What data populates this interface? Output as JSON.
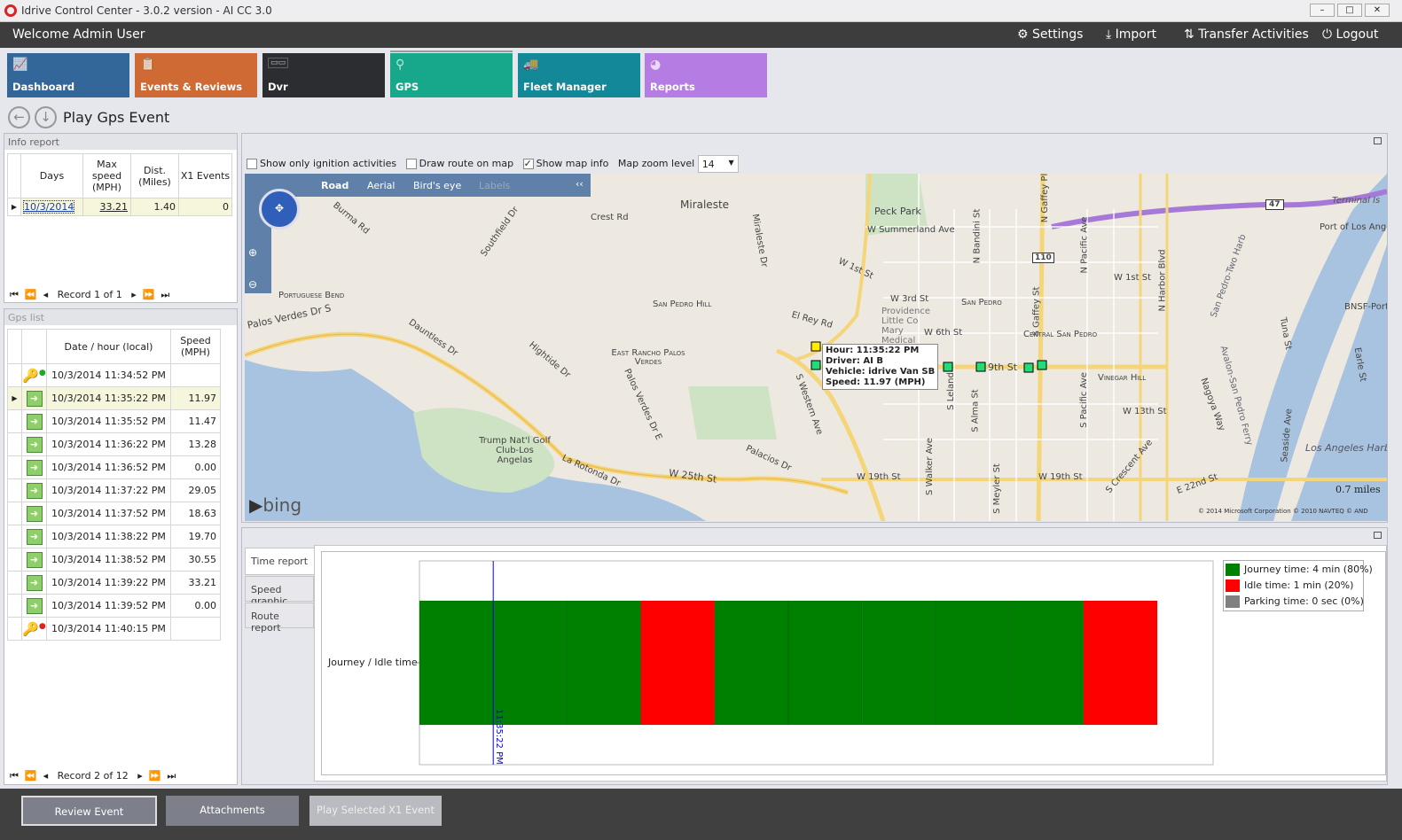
{
  "window": {
    "title": "Idrive Control Center - 3.0.2 version - AI CC 3.0",
    "controls": [
      "–",
      "□",
      "✕"
    ]
  },
  "header": {
    "welcome": "Welcome Admin User",
    "settings": "Settings",
    "import": "Import",
    "transfer": "Transfer Activities",
    "logout": "Logout"
  },
  "tiles": [
    {
      "label": "Dashboard",
      "color": "#336699",
      "icon": "chart-icon"
    },
    {
      "label": "Events & Reviews",
      "color": "#cf6a34",
      "icon": "clipboard-icon"
    },
    {
      "label": "Dvr",
      "color": "#2b2d31",
      "icon": "dvr-icon"
    },
    {
      "label": "GPS",
      "color": "#17a88b",
      "icon": "pin-icon"
    },
    {
      "label": "Fleet Manager",
      "color": "#138899",
      "icon": "trucks-icon"
    },
    {
      "label": "Reports",
      "color": "#b57de3",
      "icon": "pie-icon"
    }
  ],
  "page": {
    "title": "Play Gps Event"
  },
  "info_report": {
    "title": "Info report",
    "columns": [
      "Days",
      "Max speed (MPH)",
      "Dist. (Miles)",
      "X1 Events"
    ],
    "rows": [
      {
        "day": "10/3/2014",
        "max_speed": "33.21",
        "dist": "1.40",
        "x1": "0"
      }
    ],
    "record": "Record 1 of 1"
  },
  "gps_list": {
    "title": "Gps list",
    "columns": [
      "Date / hour (local)",
      "Speed (MPH)"
    ],
    "rows": [
      {
        "time": "10/3/2014 11:34:52 PM",
        "speed": "",
        "type": "ignition-on"
      },
      {
        "time": "10/3/2014 11:35:22 PM",
        "speed": "11.97",
        "type": "gps",
        "selected": true
      },
      {
        "time": "10/3/2014 11:35:52 PM",
        "speed": "11.47",
        "type": "gps"
      },
      {
        "time": "10/3/2014 11:36:22 PM",
        "speed": "13.28",
        "type": "gps"
      },
      {
        "time": "10/3/2014 11:36:52 PM",
        "speed": "0.00",
        "type": "gps"
      },
      {
        "time": "10/3/2014 11:37:22 PM",
        "speed": "29.05",
        "type": "gps"
      },
      {
        "time": "10/3/2014 11:37:52 PM",
        "speed": "18.63",
        "type": "gps"
      },
      {
        "time": "10/3/2014 11:38:22 PM",
        "speed": "19.70",
        "type": "gps"
      },
      {
        "time": "10/3/2014 11:38:52 PM",
        "speed": "30.55",
        "type": "gps"
      },
      {
        "time": "10/3/2014 11:39:22 PM",
        "speed": "33.21",
        "type": "gps"
      },
      {
        "time": "10/3/2014 11:39:52 PM",
        "speed": "0.00",
        "type": "gps"
      },
      {
        "time": "10/3/2014 11:40:15 PM",
        "speed": "",
        "type": "ignition-off"
      }
    ],
    "record": "Record 2 of 12"
  },
  "map_options": {
    "ignition_only": "Show only ignition activities",
    "ignition_only_checked": false,
    "draw_route": "Draw route on map",
    "draw_route_checked": false,
    "show_info": "Show map info",
    "show_info_checked": true,
    "zoom_label": "Map zoom level",
    "zoom_value": "14"
  },
  "map": {
    "modes": [
      "Road",
      "Aerial",
      "Bird's eye",
      "Labels"
    ],
    "active_mode": "Road",
    "collapse": "‹‹",
    "brand": "bing",
    "scale": "0.7 miles",
    "copyright": "© 2014 Microsoft Corporation   © 2010 NAVTEQ   © AND",
    "tooltip": {
      "hour": "Hour: 11:35:22 PM",
      "driver": "Driver: AI B",
      "vehicle": "Vehicle: idrive Van SB",
      "speed": "Speed: 11.97 (MPH)"
    },
    "labels": [
      "Miraleste",
      "Peck Park",
      "W Summerland Ave",
      "Crest Rd",
      "Portuguese Bend",
      "Palos Verdes Dr S",
      "San Pedro Hill",
      "East Rancho Palos Verdes",
      "W 1st St",
      "W 3rd St",
      "Providence Little Co Mary Medical",
      "San Pedro",
      "W 6th St",
      "Central San Pedro",
      "9th St",
      "Vinegar Hill",
      "W 13th St",
      "W 19th St",
      "W 25th St",
      "Trump Nat'l Golf Club-Los Angelas",
      "Palos Verdes Dr E",
      "La Rotonda Dr",
      "Palacios Dr",
      "S Western Ave",
      "El Rey Rd",
      "Miraleste Dr",
      "Dauntless Dr",
      "Hightide Dr",
      "Burma Rd",
      "Southfield Dr",
      "N Gaffey Pl",
      "N Bandini St",
      "N Pacific Ave",
      "N Harbor Blvd",
      "S Gaffey St",
      "S Pacific Ave",
      "S Leland",
      "S Alma St",
      "S Walker Ave",
      "S Meyler St",
      "S Crescent Ave",
      "E 22nd St",
      "W 1st St",
      "Terminal Is",
      "Port of Los Angel",
      "BNSF-Port",
      "Los Angeles Harb",
      "Tuna St",
      "Earle St",
      "Seaside Ave",
      "Nagoya Way",
      "Avalon-San Pedro Ferry",
      "San Pedro-Two Harb",
      "47",
      "110",
      "W 19th St"
    ]
  },
  "report_tabs": [
    "Time report",
    "Speed graphic",
    "Route report"
  ],
  "chart_data": {
    "type": "bar",
    "orientation": "horizontal-timeline",
    "ylabel": "Journey / Idle time",
    "segment_start_times": [
      "11:34:52 PM",
      "11:35:22 PM",
      "11:35:52 PM",
      "11:36:22 PM",
      "11:36:52 PM",
      "11:37:22 PM",
      "11:37:52 PM",
      "11:38:22 PM",
      "11:38:52 PM",
      "11:39:22 PM"
    ],
    "segments": [
      "journey",
      "journey",
      "journey",
      "idle",
      "journey",
      "journey",
      "journey",
      "journey",
      "journey",
      "idle"
    ],
    "segment_seconds": 30,
    "cursor": "11:35:22 PM",
    "legend": [
      {
        "key": "journey",
        "label": "Journey time: 4 min (80%)",
        "color": "#008000"
      },
      {
        "key": "idle",
        "label": "Idle time: 1 min (20%)",
        "color": "#ff0000"
      },
      {
        "key": "parking",
        "label": "Parking time: 0 sec (0%)",
        "color": "#808080"
      }
    ],
    "legend_position": "top-right"
  },
  "footer": {
    "review": "Review Event",
    "attachments": "Attachments",
    "play_x1": "Play Selected X1 Event"
  }
}
